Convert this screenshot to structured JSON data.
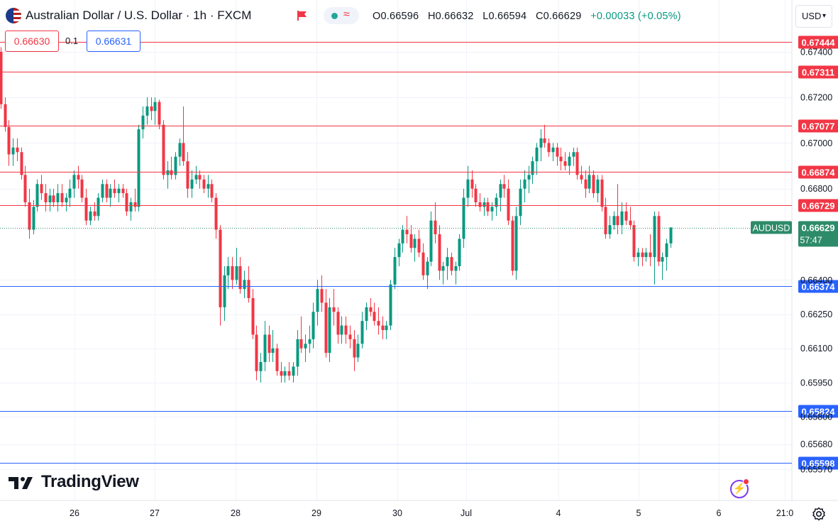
{
  "header": {
    "flag_icon": "aud-usd-flag-icon",
    "title": "Australian Dollar / U.S. Dollar · 1h · FXCM",
    "market_status_icon": "market-closed-flag-icon",
    "open": "O0.66596",
    "high": "H0.66632",
    "low": "L0.66594",
    "close": "C0.66629",
    "change": "+0.00033 (+0.05%)"
  },
  "trade": {
    "sell_price": "0.66630",
    "spread": "0.1",
    "buy_price": "0.66631"
  },
  "currency_button": "USD",
  "logo_text": "TradingView",
  "colors": {
    "up": "#089981",
    "down": "#f23645",
    "resistance": "#f23645",
    "support": "#2962ff",
    "current": "#2e8b6a",
    "grid": "#f0f3fa"
  },
  "chart_data": {
    "type": "candlestick",
    "symbol": "AUDUSD",
    "timeframe": "1h",
    "ylim": [
      0.6548,
      0.6758
    ],
    "y_ticks": [
      "0.67400",
      "0.67200",
      "0.67000",
      "0.66800",
      "0.66400",
      "0.66250",
      "0.66100",
      "0.65950",
      "0.65800",
      "0.65680",
      "0.65570"
    ],
    "x_ticks": [
      "26",
      "27",
      "28",
      "29",
      "30",
      "Jul",
      "4",
      "5",
      "6",
      "21:0"
    ],
    "current_price": "0.66629",
    "current_label": "AUDUSD",
    "countdown": "57:47",
    "resistance_levels": [
      "0.67444",
      "0.67311",
      "0.67077",
      "0.66874",
      "0.66729"
    ],
    "support_levels": [
      "0.66374",
      "0.65824",
      "0.65598"
    ],
    "candles": [
      [
        0.674,
        0.6742,
        0.6715,
        0.6717
      ],
      [
        0.6717,
        0.672,
        0.6705,
        0.6707
      ],
      [
        0.6707,
        0.671,
        0.669,
        0.6695
      ],
      [
        0.6695,
        0.6702,
        0.669,
        0.6698
      ],
      [
        0.6698,
        0.6702,
        0.6692,
        0.6696
      ],
      [
        0.6696,
        0.6698,
        0.6684,
        0.6686
      ],
      [
        0.6686,
        0.669,
        0.6672,
        0.6674
      ],
      [
        0.6674,
        0.668,
        0.6658,
        0.6662
      ],
      [
        0.6662,
        0.6675,
        0.666,
        0.6672
      ],
      [
        0.6672,
        0.6684,
        0.667,
        0.6682
      ],
      [
        0.6682,
        0.6686,
        0.6675,
        0.6678
      ],
      [
        0.6678,
        0.6682,
        0.667,
        0.6674
      ],
      [
        0.6674,
        0.668,
        0.667,
        0.6677
      ],
      [
        0.6677,
        0.668,
        0.6672,
        0.6674
      ],
      [
        0.6674,
        0.6682,
        0.667,
        0.6678
      ],
      [
        0.6678,
        0.6682,
        0.6672,
        0.6674
      ],
      [
        0.6674,
        0.6678,
        0.667,
        0.6676
      ],
      [
        0.6676,
        0.6684,
        0.6672,
        0.668
      ],
      [
        0.668,
        0.6688,
        0.6676,
        0.6686
      ],
      [
        0.6686,
        0.669,
        0.668,
        0.6684
      ],
      [
        0.6684,
        0.6686,
        0.6674,
        0.6676
      ],
      [
        0.6676,
        0.668,
        0.6664,
        0.6666
      ],
      [
        0.6666,
        0.6672,
        0.6664,
        0.667
      ],
      [
        0.667,
        0.6674,
        0.6666,
        0.6668
      ],
      [
        0.6668,
        0.6678,
        0.6666,
        0.6676
      ],
      [
        0.6676,
        0.6684,
        0.6674,
        0.6682
      ],
      [
        0.6682,
        0.6684,
        0.6674,
        0.6676
      ],
      [
        0.6676,
        0.6682,
        0.6672,
        0.668
      ],
      [
        0.668,
        0.6684,
        0.6676,
        0.6678
      ],
      [
        0.6678,
        0.6682,
        0.6674,
        0.668
      ],
      [
        0.668,
        0.6682,
        0.6676,
        0.6678
      ],
      [
        0.6678,
        0.668,
        0.6668,
        0.667
      ],
      [
        0.667,
        0.6676,
        0.6666,
        0.6674
      ],
      [
        0.6674,
        0.668,
        0.667,
        0.6672
      ],
      [
        0.6672,
        0.6708,
        0.667,
        0.6706
      ],
      [
        0.6706,
        0.6716,
        0.6702,
        0.6712
      ],
      [
        0.6712,
        0.672,
        0.6708,
        0.6716
      ],
      [
        0.6716,
        0.672,
        0.671,
        0.6714
      ],
      [
        0.6714,
        0.672,
        0.6708,
        0.6718
      ],
      [
        0.6718,
        0.6719,
        0.6706,
        0.6708
      ],
      [
        0.6708,
        0.671,
        0.6684,
        0.6686
      ],
      [
        0.6686,
        0.6692,
        0.668,
        0.6688
      ],
      [
        0.6688,
        0.6694,
        0.6684,
        0.6686
      ],
      [
        0.6686,
        0.6696,
        0.6684,
        0.6694
      ],
      [
        0.6694,
        0.6702,
        0.669,
        0.67
      ],
      [
        0.67,
        0.6716,
        0.669,
        0.6692
      ],
      [
        0.6692,
        0.6696,
        0.6676,
        0.668
      ],
      [
        0.668,
        0.6688,
        0.6676,
        0.6684
      ],
      [
        0.6684,
        0.669,
        0.6682,
        0.6686
      ],
      [
        0.6686,
        0.6688,
        0.668,
        0.6684
      ],
      [
        0.6684,
        0.6686,
        0.6678,
        0.668
      ],
      [
        0.668,
        0.6686,
        0.6676,
        0.6682
      ],
      [
        0.6682,
        0.6684,
        0.6674,
        0.6676
      ],
      [
        0.6676,
        0.6678,
        0.6658,
        0.6662
      ],
      [
        0.6662,
        0.6664,
        0.662,
        0.6628
      ],
      [
        0.6628,
        0.6646,
        0.6622,
        0.6642
      ],
      [
        0.6642,
        0.665,
        0.6636,
        0.6646
      ],
      [
        0.6646,
        0.665,
        0.6636,
        0.664
      ],
      [
        0.664,
        0.6654,
        0.6638,
        0.6646
      ],
      [
        0.6646,
        0.665,
        0.6634,
        0.6636
      ],
      [
        0.6636,
        0.6644,
        0.6632,
        0.664
      ],
      [
        0.664,
        0.6646,
        0.663,
        0.6632
      ],
      [
        0.6632,
        0.6636,
        0.6614,
        0.6616
      ],
      [
        0.6616,
        0.662,
        0.6596,
        0.66
      ],
      [
        0.66,
        0.6608,
        0.6595,
        0.6604
      ],
      [
        0.6604,
        0.6622,
        0.66,
        0.6616
      ],
      [
        0.6616,
        0.662,
        0.6604,
        0.6608
      ],
      [
        0.6608,
        0.6618,
        0.6604,
        0.661
      ],
      [
        0.661,
        0.6612,
        0.6598,
        0.66
      ],
      [
        0.66,
        0.6604,
        0.6595,
        0.6598
      ],
      [
        0.6598,
        0.6602,
        0.6595,
        0.66
      ],
      [
        0.66,
        0.6604,
        0.6596,
        0.6598
      ],
      [
        0.6598,
        0.6604,
        0.6595,
        0.6602
      ],
      [
        0.6602,
        0.6618,
        0.6598,
        0.6614
      ],
      [
        0.6614,
        0.6624,
        0.6608,
        0.661
      ],
      [
        0.661,
        0.6616,
        0.6604,
        0.6612
      ],
      [
        0.6612,
        0.662,
        0.6608,
        0.6614
      ],
      [
        0.6614,
        0.663,
        0.661,
        0.6626
      ],
      [
        0.6626,
        0.664,
        0.662,
        0.6636
      ],
      [
        0.6636,
        0.6642,
        0.6626,
        0.663
      ],
      [
        0.663,
        0.6636,
        0.6606,
        0.6608
      ],
      [
        0.6608,
        0.6632,
        0.6604,
        0.6628
      ],
      [
        0.6628,
        0.6636,
        0.662,
        0.6626
      ],
      [
        0.6626,
        0.6628,
        0.6612,
        0.6616
      ],
      [
        0.6616,
        0.6624,
        0.6612,
        0.662
      ],
      [
        0.662,
        0.6624,
        0.6612,
        0.6616
      ],
      [
        0.6616,
        0.662,
        0.661,
        0.6614
      ],
      [
        0.6614,
        0.6618,
        0.66,
        0.6606
      ],
      [
        0.6606,
        0.6616,
        0.6604,
        0.6612
      ],
      [
        0.6612,
        0.6626,
        0.661,
        0.6622
      ],
      [
        0.6622,
        0.663,
        0.6618,
        0.6628
      ],
      [
        0.6628,
        0.6632,
        0.6624,
        0.6626
      ],
      [
        0.6626,
        0.663,
        0.662,
        0.6622
      ],
      [
        0.6622,
        0.6628,
        0.6616,
        0.662
      ],
      [
        0.662,
        0.6624,
        0.6614,
        0.6618
      ],
      [
        0.6618,
        0.6622,
        0.6614,
        0.662
      ],
      [
        0.662,
        0.664,
        0.6618,
        0.6638
      ],
      [
        0.6638,
        0.6654,
        0.6636,
        0.665
      ],
      [
        0.665,
        0.6658,
        0.6646,
        0.6656
      ],
      [
        0.6656,
        0.6664,
        0.6652,
        0.6662
      ],
      [
        0.6662,
        0.6668,
        0.6656,
        0.666
      ],
      [
        0.666,
        0.6664,
        0.6652,
        0.6654
      ],
      [
        0.6654,
        0.666,
        0.6648,
        0.6658
      ],
      [
        0.6658,
        0.6662,
        0.665,
        0.6652
      ],
      [
        0.6652,
        0.6656,
        0.664,
        0.6642
      ],
      [
        0.6642,
        0.665,
        0.6636,
        0.6648
      ],
      [
        0.6648,
        0.667,
        0.6646,
        0.6666
      ],
      [
        0.6666,
        0.6674,
        0.6656,
        0.666
      ],
      [
        0.666,
        0.6664,
        0.664,
        0.6644
      ],
      [
        0.6644,
        0.6648,
        0.6638,
        0.6646
      ],
      [
        0.6646,
        0.6654,
        0.664,
        0.665
      ],
      [
        0.665,
        0.6652,
        0.6642,
        0.6644
      ],
      [
        0.6644,
        0.6648,
        0.6638,
        0.6646
      ],
      [
        0.6646,
        0.666,
        0.6644,
        0.6658
      ],
      [
        0.6658,
        0.668,
        0.6654,
        0.6676
      ],
      [
        0.6676,
        0.669,
        0.6672,
        0.6684
      ],
      [
        0.6684,
        0.6688,
        0.6676,
        0.668
      ],
      [
        0.668,
        0.6682,
        0.6672,
        0.6674
      ],
      [
        0.6674,
        0.6678,
        0.667,
        0.6672
      ],
      [
        0.6672,
        0.6676,
        0.6668,
        0.6674
      ],
      [
        0.6674,
        0.6676,
        0.6668,
        0.667
      ],
      [
        0.667,
        0.6674,
        0.6666,
        0.6672
      ],
      [
        0.6672,
        0.6678,
        0.6668,
        0.6676
      ],
      [
        0.6676,
        0.6684,
        0.667,
        0.6682
      ],
      [
        0.6682,
        0.6686,
        0.6676,
        0.668
      ],
      [
        0.668,
        0.6684,
        0.6664,
        0.6666
      ],
      [
        0.6666,
        0.6668,
        0.6642,
        0.6644
      ],
      [
        0.6644,
        0.6672,
        0.664,
        0.6668
      ],
      [
        0.6668,
        0.6684,
        0.6664,
        0.668
      ],
      [
        0.668,
        0.6688,
        0.6674,
        0.6684
      ],
      [
        0.6684,
        0.669,
        0.6678,
        0.6686
      ],
      [
        0.6686,
        0.6694,
        0.6682,
        0.6692
      ],
      [
        0.6692,
        0.67,
        0.6686,
        0.6698
      ],
      [
        0.6698,
        0.6706,
        0.6692,
        0.6702
      ],
      [
        0.6702,
        0.6708,
        0.6698,
        0.67
      ],
      [
        0.67,
        0.6702,
        0.6694,
        0.6696
      ],
      [
        0.6696,
        0.67,
        0.6692,
        0.6698
      ],
      [
        0.6698,
        0.67,
        0.669,
        0.6694
      ],
      [
        0.6694,
        0.6698,
        0.6688,
        0.6692
      ],
      [
        0.6692,
        0.6696,
        0.6688,
        0.669
      ],
      [
        0.669,
        0.6696,
        0.6686,
        0.6694
      ],
      [
        0.6694,
        0.6698,
        0.669,
        0.6696
      ],
      [
        0.6696,
        0.6698,
        0.6684,
        0.6686
      ],
      [
        0.6686,
        0.669,
        0.6682,
        0.6684
      ],
      [
        0.6684,
        0.6688,
        0.6676,
        0.668
      ],
      [
        0.668,
        0.669,
        0.6678,
        0.6686
      ],
      [
        0.6686,
        0.6688,
        0.6676,
        0.6678
      ],
      [
        0.6678,
        0.6686,
        0.6674,
        0.6684
      ],
      [
        0.6684,
        0.6686,
        0.667,
        0.6672
      ],
      [
        0.6672,
        0.6676,
        0.6658,
        0.666
      ],
      [
        0.666,
        0.6668,
        0.6658,
        0.6664
      ],
      [
        0.6664,
        0.667,
        0.6662,
        0.6668
      ],
      [
        0.6668,
        0.6682,
        0.666,
        0.6664
      ],
      [
        0.6664,
        0.6674,
        0.666,
        0.667
      ],
      [
        0.667,
        0.6674,
        0.6664,
        0.6666
      ],
      [
        0.6666,
        0.6672,
        0.6662,
        0.6664
      ],
      [
        0.6664,
        0.6666,
        0.6648,
        0.665
      ],
      [
        0.665,
        0.6654,
        0.6646,
        0.6652
      ],
      [
        0.6652,
        0.6654,
        0.6646,
        0.665
      ],
      [
        0.665,
        0.6654,
        0.6648,
        0.6652
      ],
      [
        0.6652,
        0.666,
        0.6646,
        0.665
      ],
      [
        0.665,
        0.667,
        0.6638,
        0.6668
      ],
      [
        0.6668,
        0.667,
        0.6646,
        0.6648
      ],
      [
        0.6648,
        0.6652,
        0.664,
        0.665
      ],
      [
        0.665,
        0.6658,
        0.6644,
        0.6656
      ],
      [
        0.6656,
        0.6663,
        0.6654,
        0.6663
      ]
    ]
  }
}
